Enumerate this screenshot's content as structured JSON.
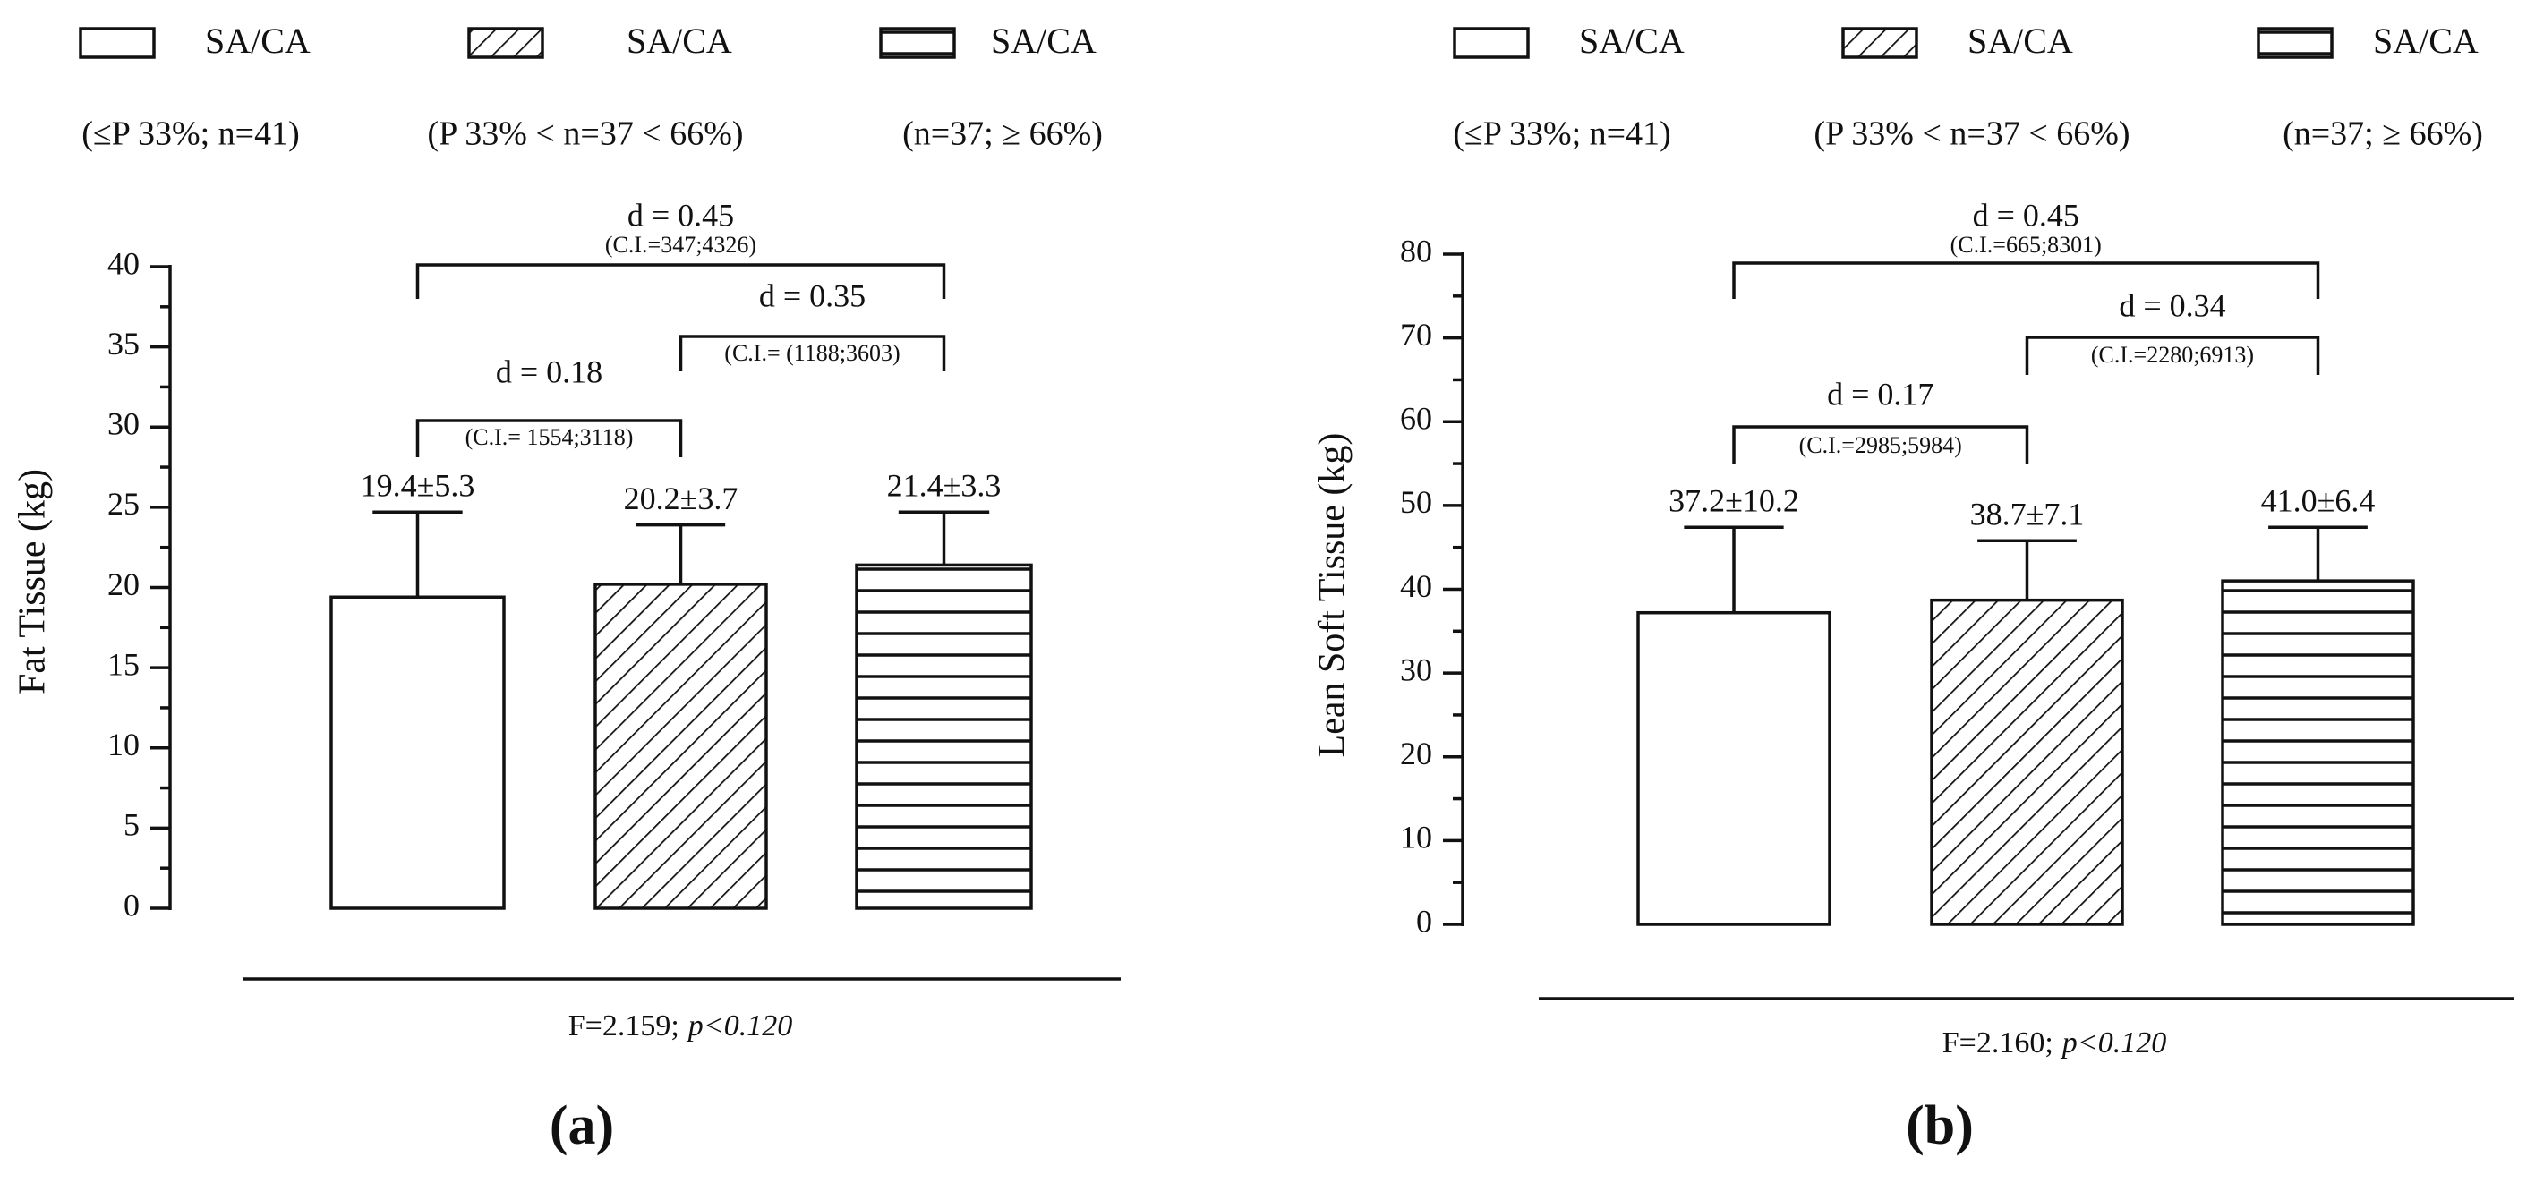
{
  "chart_data": [
    {
      "type": "bar",
      "panel": "(a)",
      "ylabel": "Fat Tissue (kg)",
      "legend": [
        {
          "name": "SA/CA",
          "note": "(≤P 33%; n=41)",
          "pattern": "none"
        },
        {
          "name": "SA/CA",
          "note": "(P 33% < n=37 < 66%)",
          "pattern": "diagonal"
        },
        {
          "name": "SA/CA",
          "note": "(n=37; ≥ 66%)",
          "pattern": "horizontal"
        }
      ],
      "values": [
        19.4,
        20.2,
        21.4
      ],
      "errors": [
        5.3,
        3.7,
        3.3
      ],
      "value_labels": [
        "19.4±5.3",
        "20.2±3.7",
        "21.4±3.3"
      ],
      "color": "#111111",
      "ylim": [
        0,
        40
      ],
      "yticks": [
        0,
        5,
        10,
        15,
        20,
        25,
        30,
        35,
        40
      ],
      "yminorticks": [
        2.5,
        7.5,
        12.5,
        17.5,
        22.5,
        27.5,
        32.5,
        37.5
      ],
      "annotations": [
        {
          "text": "d = 0.45",
          "ci": "(C.I.=347;4326)",
          "from": 0,
          "to": 2
        },
        {
          "text": "d = 0.35",
          "ci": "(C.I.= (1188;3603)",
          "from": 1,
          "to": 2
        },
        {
          "text": "d = 0.18",
          "ci": "(C.I.= 1554;3118)",
          "from": 0,
          "to": 1
        }
      ],
      "stat": "F=2.159;",
      "p": "p<0.120"
    },
    {
      "type": "bar",
      "panel": "(b)",
      "ylabel": "Lean Soft Tissue (kg)",
      "legend": [
        {
          "name": "SA/CA",
          "note": "(≤P 33%; n=41)",
          "pattern": "none"
        },
        {
          "name": "SA/CA",
          "note": "(P 33% < n=37 < 66%)",
          "pattern": "diagonal"
        },
        {
          "name": "SA/CA",
          "note": "(n=37; ≥ 66%)",
          "pattern": "horizontal"
        }
      ],
      "values": [
        37.2,
        38.7,
        41.0
      ],
      "errors": [
        10.2,
        7.1,
        6.4
      ],
      "value_labels": [
        "37.2±10.2",
        "38.7±7.1",
        "41.0±6.4"
      ],
      "color": "#111111",
      "ylim": [
        0,
        80
      ],
      "yticks": [
        0,
        10,
        20,
        30,
        40,
        50,
        60,
        70,
        80
      ],
      "yminorticks": [
        5,
        15,
        25,
        35,
        45,
        55,
        65,
        75
      ],
      "annotations": [
        {
          "text": "d = 0.45",
          "ci": "(C.I.=665;8301)",
          "from": 0,
          "to": 2
        },
        {
          "text": "d = 0.34",
          "ci": "(C.I.=2280;6913)",
          "from": 1,
          "to": 2
        },
        {
          "text": "d = 0.17",
          "ci": "(C.I.=2985;5984)",
          "from": 0,
          "to": 1
        }
      ],
      "stat": "F=2.160;",
      "p": "p<0.120"
    }
  ]
}
